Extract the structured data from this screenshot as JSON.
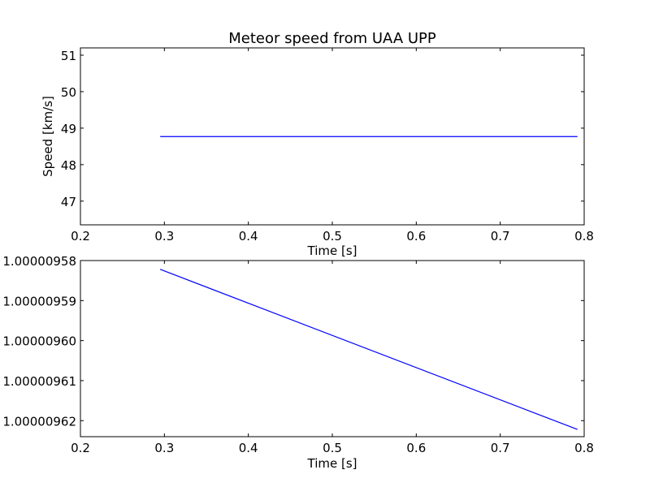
{
  "chart_data": [
    {
      "type": "line",
      "title": "Meteor speed from  UAA UPP",
      "xlabel": "Time [s]",
      "ylabel": "Speed [km/s]",
      "xlim": [
        0.2,
        0.8
      ],
      "ylim": [
        46.35,
        51.2
      ],
      "x_ticks": [
        0.2,
        0.3,
        0.4,
        0.5,
        0.6,
        0.7,
        0.8
      ],
      "x_tick_labels": [
        "0.2",
        "0.3",
        "0.4",
        "0.5",
        "0.6",
        "0.7",
        "0.8"
      ],
      "y_ticks": [
        47,
        48,
        49,
        50,
        51
      ],
      "y_tick_labels": [
        "47",
        "48",
        "49",
        "50",
        "51"
      ],
      "grid": false,
      "line_color": "#0000ff",
      "series": [
        {
          "x": [
            0.295,
            0.792
          ],
          "y": [
            48.77,
            48.77
          ]
        }
      ]
    },
    {
      "type": "line",
      "title": "",
      "xlabel": "Time [s]",
      "ylabel": "",
      "xlim": [
        0.2,
        0.8
      ],
      "ylim": [
        1.00000958,
        1.000009624
      ],
      "y_inverted": true,
      "x_ticks": [
        0.2,
        0.3,
        0.4,
        0.5,
        0.6,
        0.7,
        0.8
      ],
      "x_tick_labels": [
        "0.2",
        "0.3",
        "0.4",
        "0.5",
        "0.6",
        "0.7",
        "0.8"
      ],
      "y_ticks": [
        1.00000958,
        1.00000959,
        1.0000096,
        1.00000961,
        1.00000962
      ],
      "y_tick_labels": [
        "1.00000958",
        "1.00000959",
        "1.00000960",
        "1.00000961",
        "1.00000962"
      ],
      "grid": false,
      "line_color": "#0000ff",
      "series": [
        {
          "x": [
            0.295,
            0.792
          ],
          "y": [
            1.0000095822,
            1.0000096222
          ]
        }
      ]
    }
  ]
}
